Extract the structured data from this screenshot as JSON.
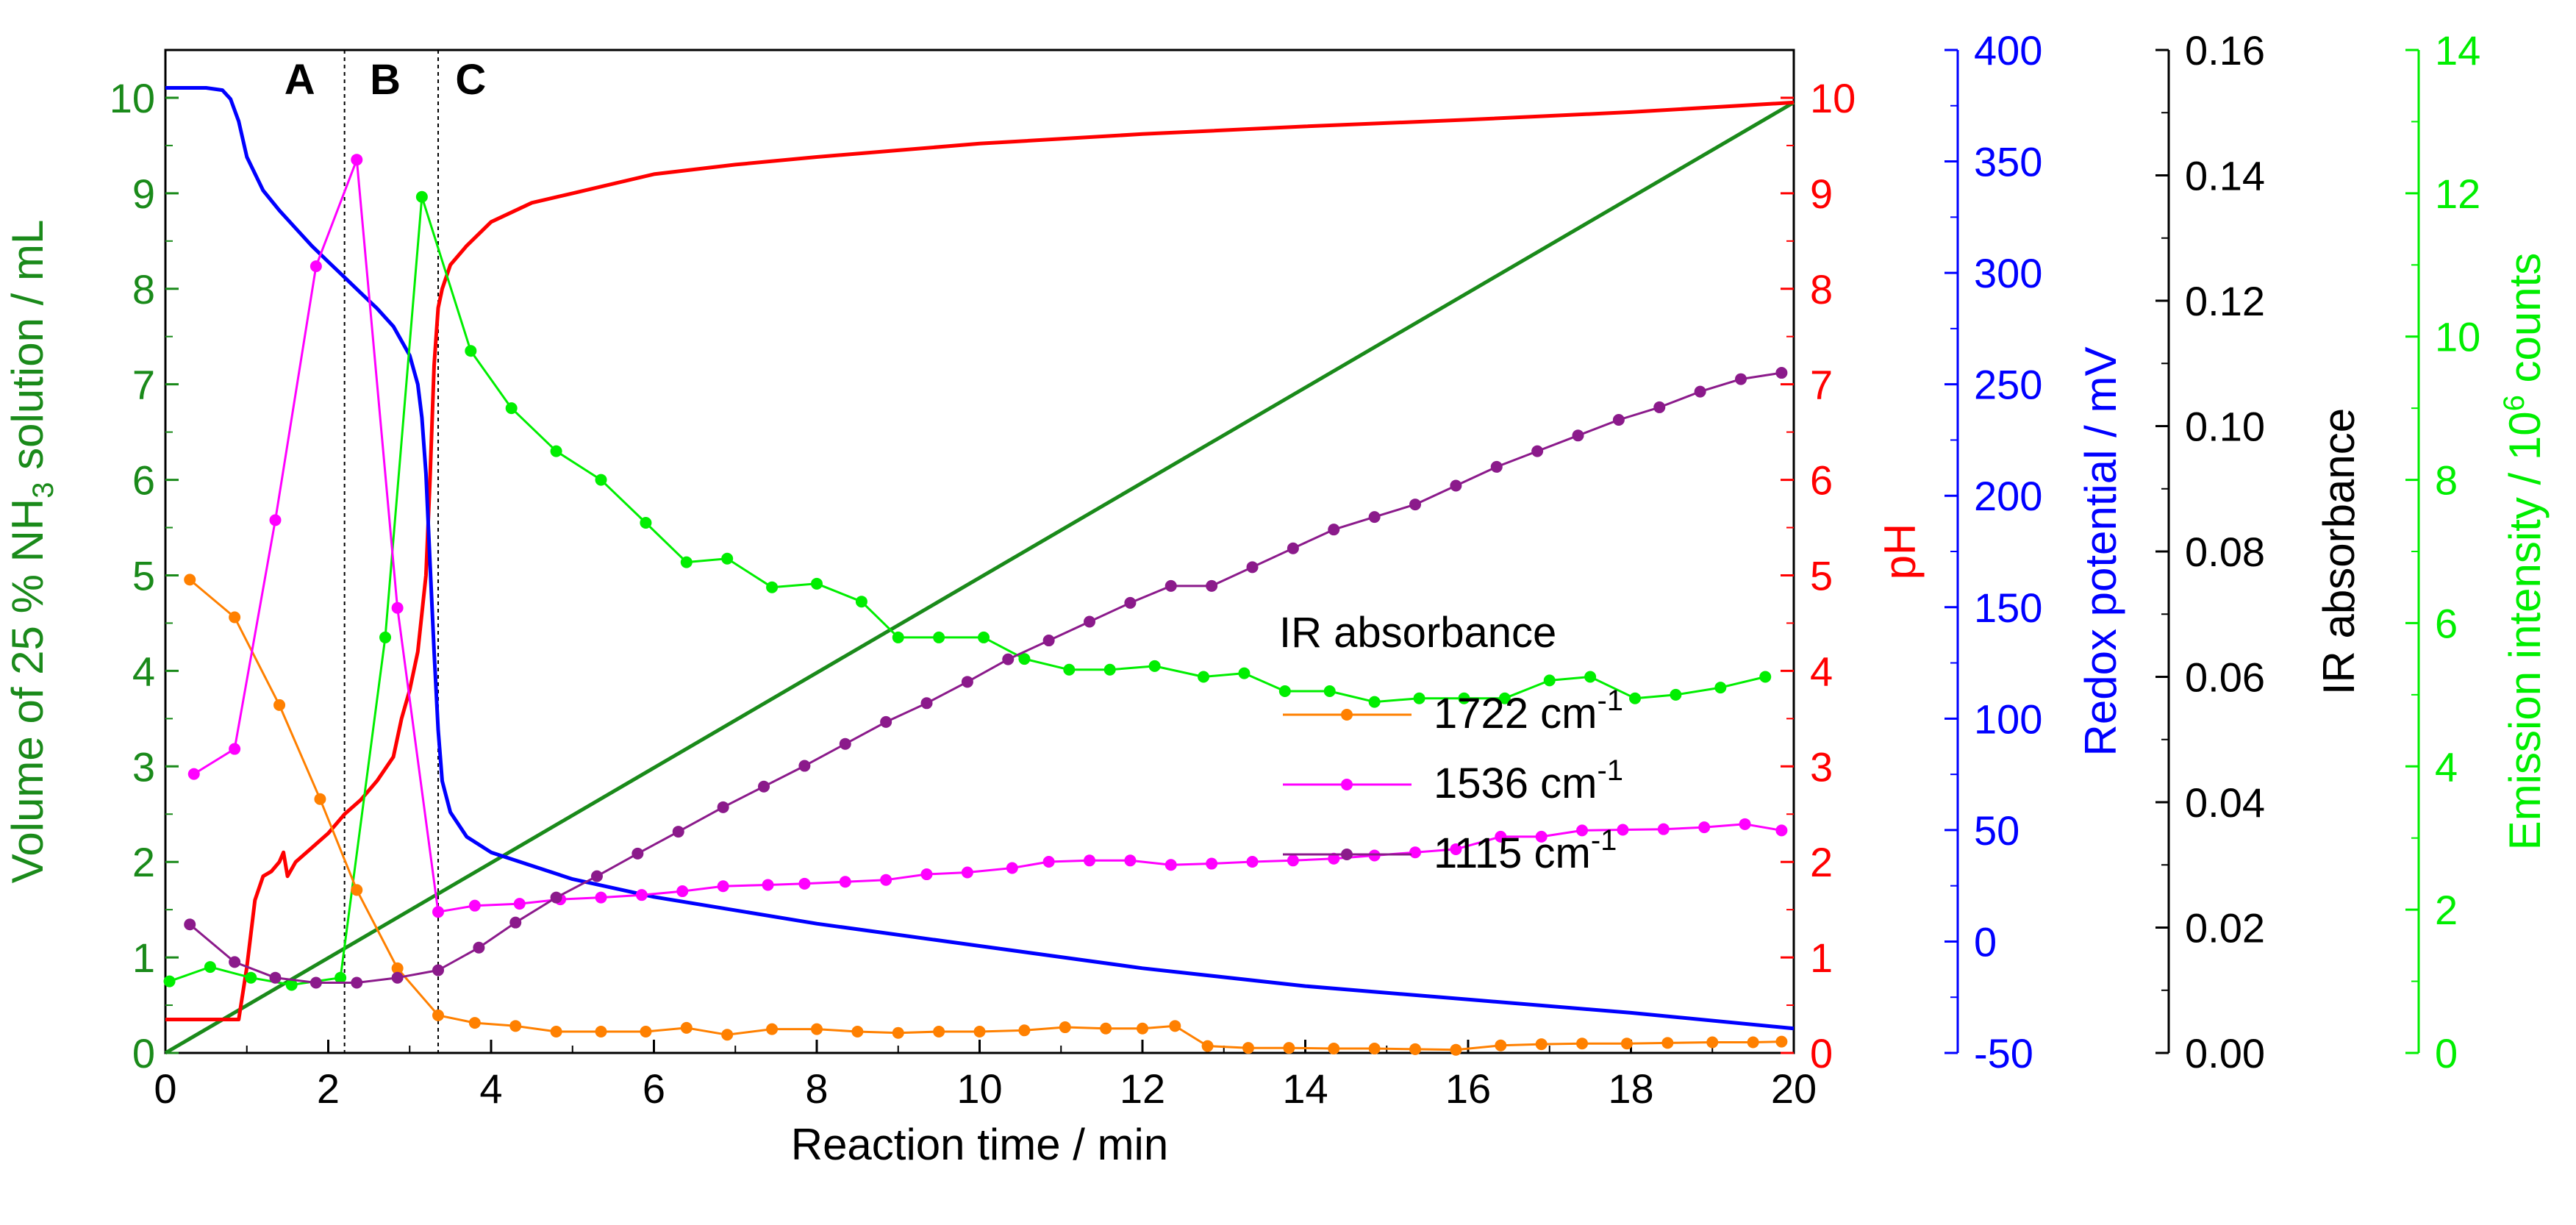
{
  "chart_data": {
    "type": "line",
    "xlabel": "Reaction time / min",
    "xlim": [
      0,
      20
    ],
    "xticks": [
      0,
      2,
      4,
      6,
      8,
      10,
      12,
      14,
      16,
      18,
      20
    ],
    "phase_markers": [
      {
        "label": "A",
        "x": 1.65
      },
      {
        "label": "B",
        "x": 2.7
      },
      {
        "label": "C",
        "x": 3.75
      }
    ],
    "phase_lines_x": [
      2.2,
      3.35
    ],
    "axes": [
      {
        "id": "vol",
        "label_pre": "Volume of 25 % NH",
        "label_sub": "3",
        "label_post": " solution / mL",
        "color": "#1a8a1a",
        "range": [
          0,
          10.5
        ],
        "ticks": [
          0,
          1,
          2,
          3,
          4,
          5,
          6,
          7,
          8,
          9,
          10
        ]
      },
      {
        "id": "ph",
        "label": "pH",
        "color": "#ff0000",
        "range": [
          0,
          10.5
        ],
        "ticks": [
          0,
          1,
          2,
          3,
          4,
          5,
          6,
          7,
          8,
          9,
          10
        ]
      },
      {
        "id": "redox",
        "label": "Redox potential / mV",
        "color": "#0000ff",
        "range": [
          -50,
          400
        ],
        "ticks": [
          -50,
          0,
          50,
          100,
          150,
          200,
          250,
          300,
          350,
          400
        ]
      },
      {
        "id": "ir",
        "label": "IR absorbance",
        "color": "#000000",
        "range": [
          0,
          0.16
        ],
        "ticks": [
          "0.00",
          "0.02",
          "0.04",
          "0.06",
          "0.08",
          "0.10",
          "0.12",
          "0.14",
          "0.16"
        ]
      },
      {
        "id": "em",
        "label_pre": "Emission intensity / 10",
        "label_sup": "6",
        "label_post": " counts",
        "color": "#00ee00",
        "range": [
          0,
          14
        ],
        "ticks": [
          0,
          2,
          4,
          6,
          8,
          10,
          12,
          14
        ]
      }
    ],
    "series": [
      {
        "name": "Volume of 25 % NH3 solution",
        "axis": "vol",
        "color": "#1a8a1a",
        "markers": false,
        "x": [
          0,
          20
        ],
        "y": [
          0,
          9.95
        ]
      },
      {
        "name": "pH",
        "axis": "ph",
        "color": "#ff0000",
        "markers": false,
        "x": [
          0,
          0.9,
          1.0,
          1.1,
          1.2,
          1.3,
          1.4,
          1.45,
          1.5,
          1.6,
          1.8,
          2.0,
          2.2,
          2.4,
          2.6,
          2.8,
          2.9,
          3.0,
          3.1,
          3.2,
          3.25,
          3.3,
          3.35,
          3.4,
          3.5,
          3.7,
          4.0,
          4.5,
          5.0,
          6.0,
          7.0,
          8.0,
          9.0,
          10.0,
          12.0,
          14.0,
          16.0,
          18.0,
          20.0
        ],
        "y": [
          0.35,
          0.35,
          0.9,
          1.6,
          1.85,
          1.9,
          2.0,
          2.1,
          1.85,
          2.0,
          2.15,
          2.3,
          2.5,
          2.65,
          2.85,
          3.1,
          3.5,
          3.8,
          4.2,
          5.0,
          6.0,
          7.2,
          7.8,
          8.0,
          8.25,
          8.45,
          8.7,
          8.9,
          9.0,
          9.2,
          9.3,
          9.38,
          9.45,
          9.52,
          9.62,
          9.7,
          9.77,
          9.85,
          9.95
        ]
      },
      {
        "name": "Redox potential",
        "axis": "redox",
        "color": "#0000ff",
        "markers": false,
        "x": [
          0,
          0.5,
          0.7,
          0.8,
          0.9,
          1.0,
          1.2,
          1.4,
          1.6,
          1.8,
          2.0,
          2.2,
          2.4,
          2.6,
          2.8,
          3.0,
          3.1,
          3.15,
          3.2,
          3.25,
          3.3,
          3.35,
          3.4,
          3.5,
          3.7,
          4.0,
          5.0,
          6.0,
          8.0,
          10.0,
          12.0,
          14.0,
          16.0,
          18.0,
          20.0
        ],
        "y": [
          383,
          383,
          382,
          378,
          368,
          352,
          337,
          328,
          320,
          312,
          305,
          298,
          291,
          284,
          276,
          263,
          250,
          235,
          210,
          170,
          130,
          95,
          72,
          58,
          47,
          40,
          28,
          20,
          8,
          -2,
          -12,
          -20,
          -26,
          -32,
          -39
        ]
      },
      {
        "name": "Emission intensity",
        "axis": "em",
        "color": "#00ee00",
        "markers": true,
        "x": [
          0.05,
          0.55,
          1.05,
          1.55,
          2.15,
          2.7,
          3.15,
          3.75,
          4.25,
          4.8,
          5.35,
          5.9,
          6.4,
          6.9,
          7.45,
          8.0,
          8.55,
          9.0,
          9.5,
          10.05,
          10.55,
          11.1,
          11.6,
          12.15,
          12.75,
          13.25,
          13.75,
          14.3,
          14.85,
          15.4,
          15.95,
          16.45,
          17.0,
          17.5,
          18.05,
          18.55,
          19.1,
          19.65
        ],
        "y": [
          1.0,
          1.2,
          1.05,
          0.95,
          1.05,
          5.8,
          11.95,
          9.8,
          9.0,
          8.4,
          8.0,
          7.4,
          6.85,
          6.9,
          6.5,
          6.55,
          6.3,
          5.8,
          5.8,
          5.8,
          5.5,
          5.35,
          5.35,
          5.4,
          5.25,
          5.3,
          5.05,
          5.05,
          4.9,
          4.95,
          4.95,
          4.95,
          5.2,
          5.25,
          4.95,
          5.0,
          5.1,
          5.25
        ]
      },
      {
        "name": "1722 cm-1",
        "axis": "ir",
        "label": "1722 cm",
        "label_sup": "-1",
        "color": "#ff8000",
        "markers": true,
        "x": [
          0.3,
          0.85,
          1.4,
          1.9,
          2.35,
          2.85,
          3.35,
          3.8,
          4.3,
          4.8,
          5.35,
          5.9,
          6.4,
          6.9,
          7.45,
          8.0,
          8.5,
          9.0,
          9.5,
          10.0,
          10.55,
          11.05,
          11.55,
          12.0,
          12.4,
          12.8,
          13.3,
          13.8,
          14.35,
          14.85,
          15.35,
          15.85,
          16.4,
          16.9,
          17.4,
          17.95,
          18.45,
          19.0,
          19.5,
          19.85
        ],
        "y": [
          0.0755,
          0.0695,
          0.0555,
          0.0405,
          0.026,
          0.0135,
          0.006,
          0.0048,
          0.0043,
          0.0034,
          0.0034,
          0.0034,
          0.004,
          0.0029,
          0.0038,
          0.0038,
          0.0034,
          0.0032,
          0.0034,
          0.0034,
          0.0036,
          0.0041,
          0.0039,
          0.0039,
          0.0043,
          0.0011,
          0.0008,
          0.0008,
          0.0007,
          0.0007,
          0.0006,
          0.0005,
          0.0012,
          0.0014,
          0.0015,
          0.0015,
          0.0016,
          0.0017,
          0.0017,
          0.0018
        ]
      },
      {
        "name": "1536 cm-1",
        "axis": "ir",
        "label": "1536 cm",
        "label_sup": "-1",
        "color": "#ff00ff",
        "markers": true,
        "x": [
          0.35,
          0.85,
          1.35,
          1.85,
          2.35,
          2.85,
          3.35,
          3.8,
          4.35,
          4.85,
          5.35,
          5.85,
          6.35,
          6.85,
          7.4,
          7.85,
          8.35,
          8.85,
          9.35,
          9.85,
          10.4,
          10.85,
          11.35,
          11.85,
          12.35,
          12.85,
          13.35,
          13.85,
          14.35,
          14.85,
          15.35,
          15.85,
          16.4,
          16.9,
          17.4,
          17.9,
          18.4,
          18.9,
          19.4,
          19.85
        ],
        "y": [
          0.0445,
          0.0485,
          0.085,
          0.1255,
          0.1425,
          0.071,
          0.0225,
          0.0235,
          0.0238,
          0.0245,
          0.0248,
          0.0252,
          0.0258,
          0.0266,
          0.0268,
          0.027,
          0.0273,
          0.0276,
          0.0285,
          0.0288,
          0.0295,
          0.0305,
          0.0307,
          0.0307,
          0.03,
          0.0302,
          0.0305,
          0.0307,
          0.031,
          0.0315,
          0.032,
          0.0325,
          0.0345,
          0.0345,
          0.0355,
          0.0356,
          0.0357,
          0.036,
          0.0365,
          0.0355
        ]
      },
      {
        "name": "1115 cm-1",
        "axis": "ir",
        "label": "1115 cm",
        "label_sup": "-1",
        "color": "#8b1a8b",
        "markers": true,
        "x": [
          0.3,
          0.85,
          1.35,
          1.85,
          2.35,
          2.85,
          3.35,
          3.85,
          4.3,
          4.8,
          5.3,
          5.8,
          6.3,
          6.85,
          7.35,
          7.85,
          8.35,
          8.85,
          9.35,
          9.85,
          10.35,
          10.85,
          11.35,
          11.85,
          12.35,
          12.85,
          13.35,
          13.85,
          14.35,
          14.85,
          15.35,
          15.85,
          16.35,
          16.85,
          17.35,
          17.85,
          18.35,
          18.85,
          19.35,
          19.85
        ],
        "y": [
          0.0205,
          0.0145,
          0.012,
          0.0112,
          0.0112,
          0.012,
          0.0132,
          0.0168,
          0.0208,
          0.0248,
          0.0282,
          0.0318,
          0.0353,
          0.0392,
          0.0425,
          0.0458,
          0.0493,
          0.0528,
          0.0558,
          0.0592,
          0.0628,
          0.0658,
          0.0688,
          0.0718,
          0.0745,
          0.0745,
          0.0775,
          0.0805,
          0.0835,
          0.0855,
          0.0875,
          0.0905,
          0.0935,
          0.096,
          0.0985,
          0.101,
          0.103,
          0.1055,
          0.1075,
          0.1085
        ]
      }
    ],
    "legend": {
      "title": "IR absorbance",
      "placement": "center-right inside plot"
    }
  }
}
